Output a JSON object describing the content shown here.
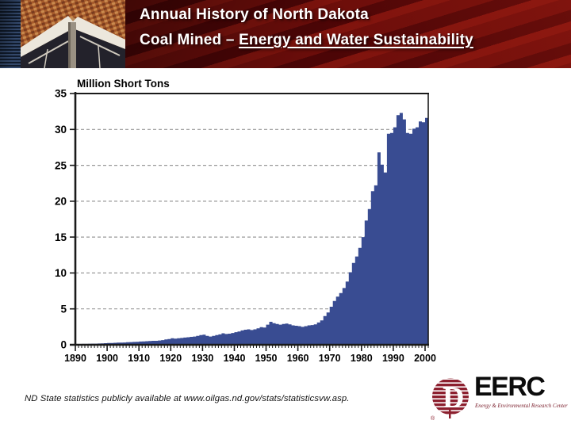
{
  "header": {
    "title_line1": "Annual History of North Dakota",
    "title_line2_prefix": "Coal Mined – ",
    "title_line2_underlined": "Energy and Water Sustainability"
  },
  "chart_data": {
    "type": "bar",
    "title": "Million Short Tons",
    "xlabel": "",
    "ylabel": "Million Short Tons",
    "ylim": [
      0,
      35
    ],
    "yticks": [
      0,
      5,
      10,
      15,
      20,
      25,
      30,
      35
    ],
    "x_start": 1890,
    "x_end": 2000,
    "xtick_labels": [
      "1890",
      "1900",
      "1910",
      "1920",
      "1930",
      "1940",
      "1950",
      "1960",
      "1970",
      "1980",
      "1990",
      "2000"
    ],
    "grid": "horizontal-dashed",
    "legend": "none",
    "bar_color": "#394C92",
    "axis_color": "#1a1a1a",
    "grid_color": "#999999",
    "values": [
      0.1,
      0.1,
      0.12,
      0.12,
      0.14,
      0.15,
      0.15,
      0.18,
      0.2,
      0.22,
      0.25,
      0.25,
      0.28,
      0.3,
      0.3,
      0.32,
      0.35,
      0.38,
      0.4,
      0.42,
      0.45,
      0.48,
      0.5,
      0.52,
      0.55,
      0.55,
      0.6,
      0.65,
      0.75,
      0.8,
      0.9,
      0.85,
      0.9,
      0.95,
      1.0,
      1.05,
      1.1,
      1.15,
      1.25,
      1.35,
      1.4,
      1.25,
      1.15,
      1.25,
      1.35,
      1.45,
      1.6,
      1.5,
      1.55,
      1.65,
      1.75,
      1.85,
      2.0,
      2.1,
      2.15,
      2.05,
      2.15,
      2.3,
      2.45,
      2.4,
      2.8,
      3.2,
      3.0,
      2.9,
      2.8,
      2.9,
      2.95,
      2.85,
      2.7,
      2.65,
      2.6,
      2.5,
      2.6,
      2.7,
      2.75,
      2.85,
      3.1,
      3.4,
      4.0,
      4.5,
      5.3,
      6.1,
      6.7,
      7.2,
      7.9,
      8.8,
      10.1,
      11.4,
      12.3,
      13.5,
      15.0,
      17.3,
      18.9,
      21.4,
      22.2,
      26.8,
      25.1,
      24.0,
      29.4,
      29.5,
      30.3,
      32.0,
      32.3,
      31.4,
      29.5,
      29.4,
      30.1,
      30.3,
      31.1,
      31.0,
      31.6
    ]
  },
  "footer": {
    "citation": "ND State statistics publicly available at www.oilgas.nd.gov/stats/statisticsvw.asp.",
    "logo": {
      "acronym": "EERC",
      "tagline": "Energy & Environmental Research Center",
      "registered_mark": "®",
      "globe_color": "#8c1f2e"
    }
  }
}
